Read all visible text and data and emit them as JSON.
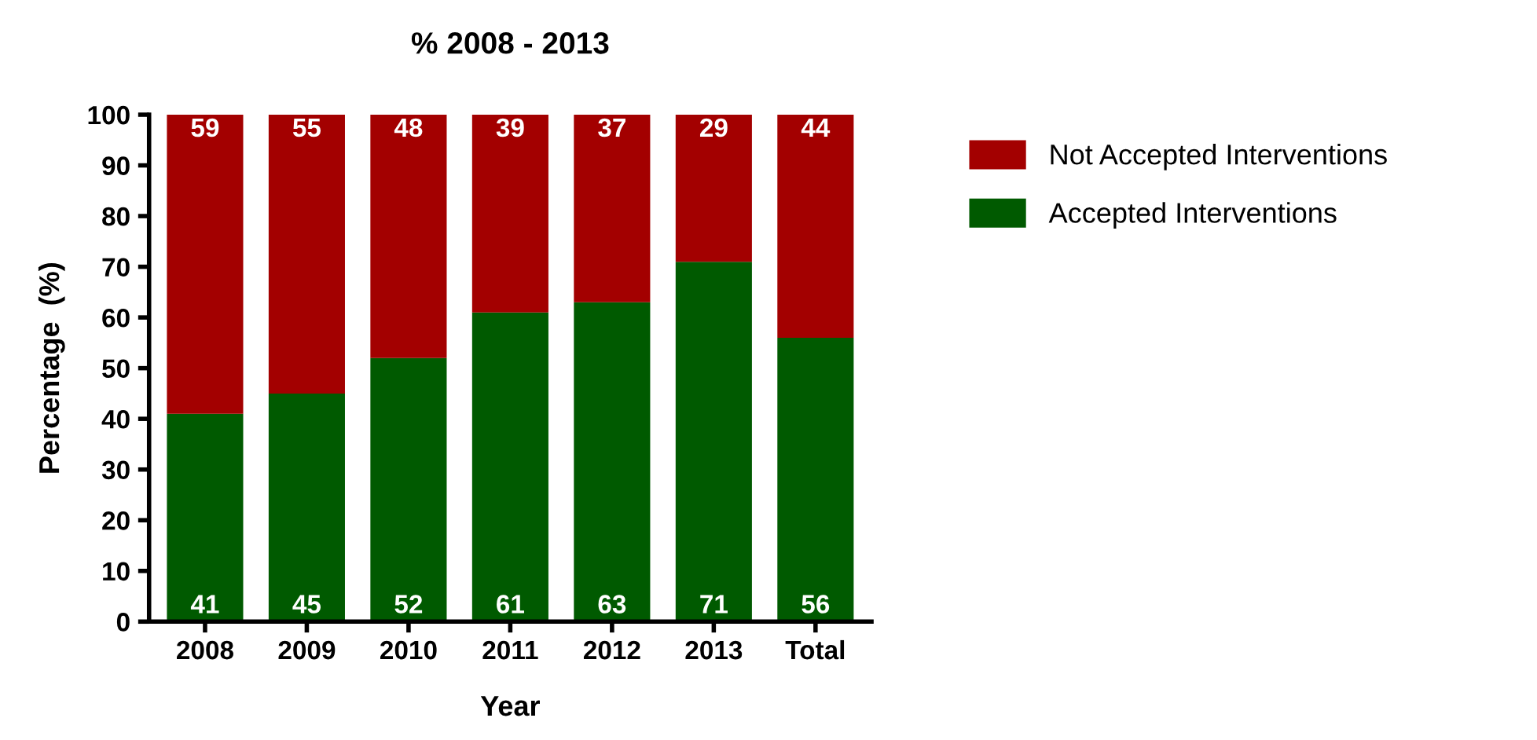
{
  "chart_data": {
    "type": "bar",
    "title": "% 2008 - 2013",
    "xlabel": "Year",
    "ylabel": "Percentage  (%)",
    "categories": [
      "2008",
      "2009",
      "2010",
      "2011",
      "2012",
      "2013",
      "Total"
    ],
    "series": [
      {
        "name": "Accepted Interventions",
        "color": "#005a00",
        "values": [
          41,
          45,
          52,
          61,
          63,
          71,
          56
        ]
      },
      {
        "name": "Not Accepted Interventions",
        "color": "#a30000",
        "values": [
          59,
          55,
          48,
          39,
          37,
          29,
          44
        ]
      }
    ],
    "stacked": true,
    "data_labels": true,
    "ylim": [
      0,
      100
    ],
    "yticks": [
      0,
      10,
      20,
      30,
      40,
      50,
      60,
      70,
      80,
      90,
      100
    ],
    "grid": false,
    "legend": "right"
  }
}
